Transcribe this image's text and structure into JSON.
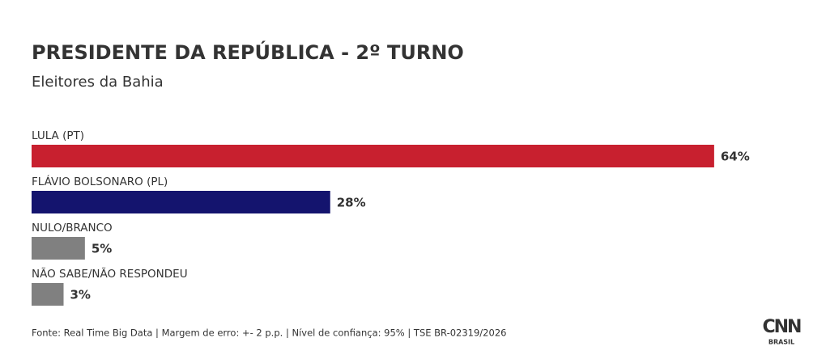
{
  "chart_data": {
    "type": "bar",
    "orientation": "horizontal",
    "title": "PRESIDENTE DA REPÚBLICA - 2º TURNO",
    "subtitle": "Eleitores da Bahia",
    "categories": [
      "LULA (PT)",
      "FLÁVIO BOLSONARO (PL)",
      "NULO/BRANCO",
      "NÃO SABE/NÃO RESPONDEU"
    ],
    "values": [
      64,
      28,
      5,
      3
    ],
    "value_labels": [
      "64%",
      "28%",
      "5%",
      "3%"
    ],
    "colors": [
      "#c8202f",
      "#14146e",
      "#808080",
      "#808080"
    ],
    "source": "Fonte: Real Time Big Data | Margem de erro: +- 2 p.p. | Nível de confiança: 95% | TSE BR-02319/2026",
    "logo": {
      "text": "CNN",
      "sub": "BRASIL"
    }
  }
}
